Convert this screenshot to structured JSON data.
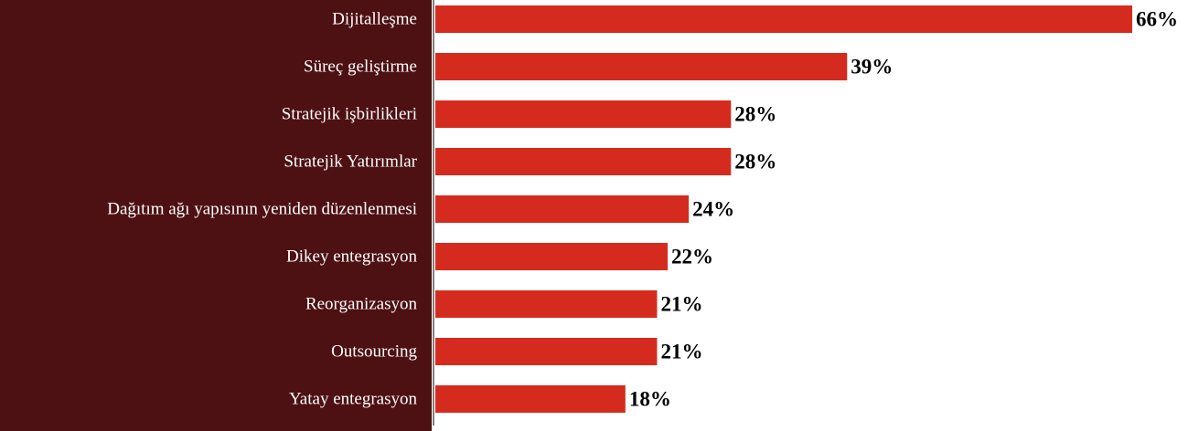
{
  "chart_data": {
    "type": "bar",
    "orientation": "horizontal",
    "categories": [
      "Dijitalleşme",
      "Süreç geliştirme",
      "Stratejik işbirlikleri",
      "Stratejik Yatırımlar",
      "Dağıtım ağı yapısının yeniden düzenlenmesi",
      "Dikey entegrasyon",
      "Reorganizasyon",
      "Outsourcing",
      "Yatay entegrasyon"
    ],
    "values": [
      66,
      39,
      28,
      28,
      24,
      22,
      21,
      21,
      18
    ],
    "value_labels": [
      "66%",
      "39%",
      "28%",
      "28%",
      "24%",
      "22%",
      "21%",
      "21%",
      "18%"
    ],
    "color": "#d52b1e"
  }
}
